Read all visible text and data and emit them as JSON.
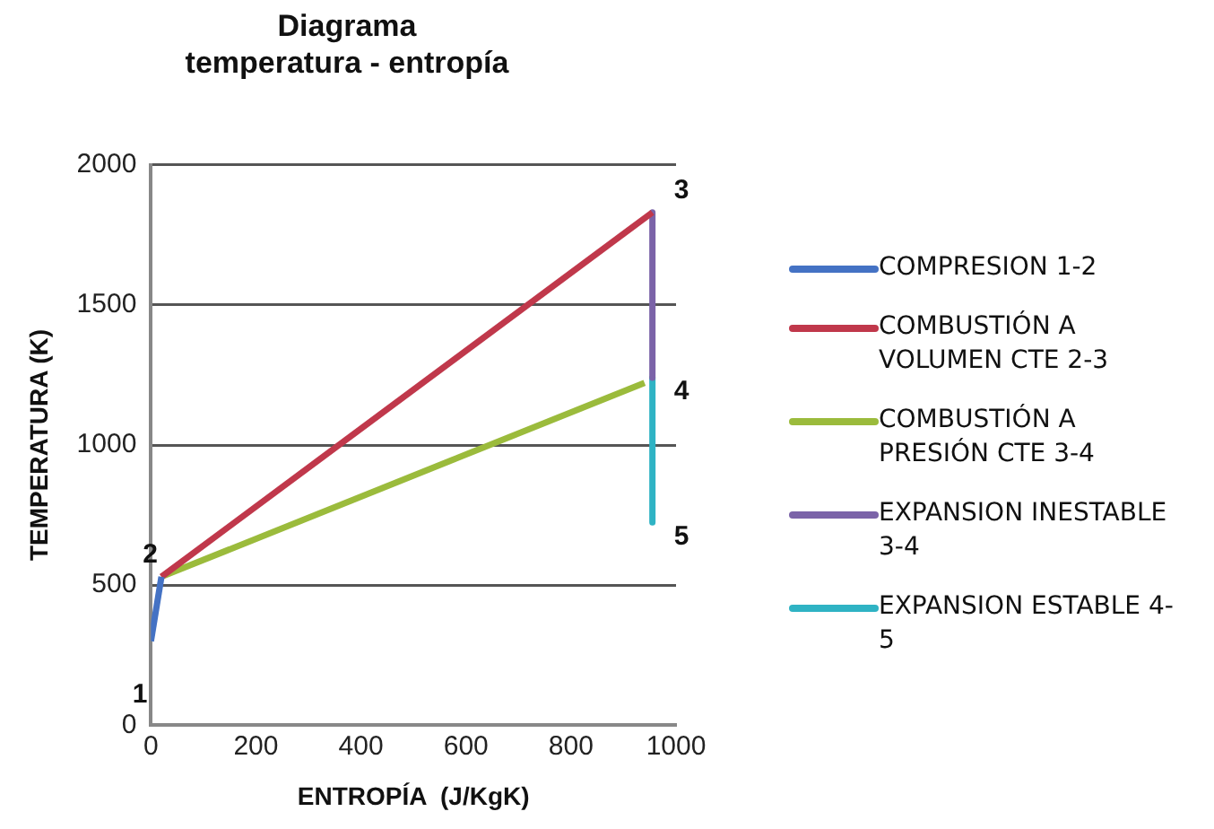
{
  "chart_data": {
    "type": "line",
    "title": "Diagrama\ntemperatura - entropía",
    "xlabel": "ENTROPÍA  (J/KgK)",
    "ylabel": "TEMPERATURA (K)",
    "xlim": [
      0,
      1000
    ],
    "xticks": [
      0,
      200,
      400,
      600,
      800,
      1000
    ],
    "ylim": [
      0,
      2000
    ],
    "yticks": [
      0,
      500,
      1000,
      1500,
      2000
    ],
    "grid": "y",
    "legend": "right",
    "marker": "none",
    "line_style": "solid",
    "series": [
      {
        "name": "COMPRESION 1-2",
        "color": "#4472c4",
        "x": [
          0,
          20
        ],
        "values": [
          300,
          530
        ]
      },
      {
        "name": "COMBUSTIÓN A VOLUMEN CTE 2-3",
        "color": "#c0384b",
        "x": [
          20,
          955
        ],
        "values": [
          530,
          1830
        ]
      },
      {
        "name": "COMBUSTIÓN A PRESIÓN CTE 3-4",
        "color": "#9bbb3c",
        "x": [
          20,
          940
        ],
        "values": [
          530,
          1222
        ]
      },
      {
        "name": "EXPANSION INESTABLE 3-4",
        "color": "#7b63a8",
        "x": [
          955,
          955
        ],
        "values": [
          1830,
          1240
        ]
      },
      {
        "name": "EXPANSION ESTABLE 4-5",
        "color": "#2fb3c4",
        "x": [
          955,
          955
        ],
        "values": [
          1240,
          724
        ]
      }
    ],
    "annotations": [
      {
        "text": "1",
        "x": 0,
        "y": 300
      },
      {
        "text": "2",
        "x": 20,
        "y": 530
      },
      {
        "text": "3",
        "x": 955,
        "y": 1830
      },
      {
        "text": "4",
        "x": 955,
        "y": 1240
      },
      {
        "text": "5",
        "x": 955,
        "y": 724
      }
    ]
  }
}
